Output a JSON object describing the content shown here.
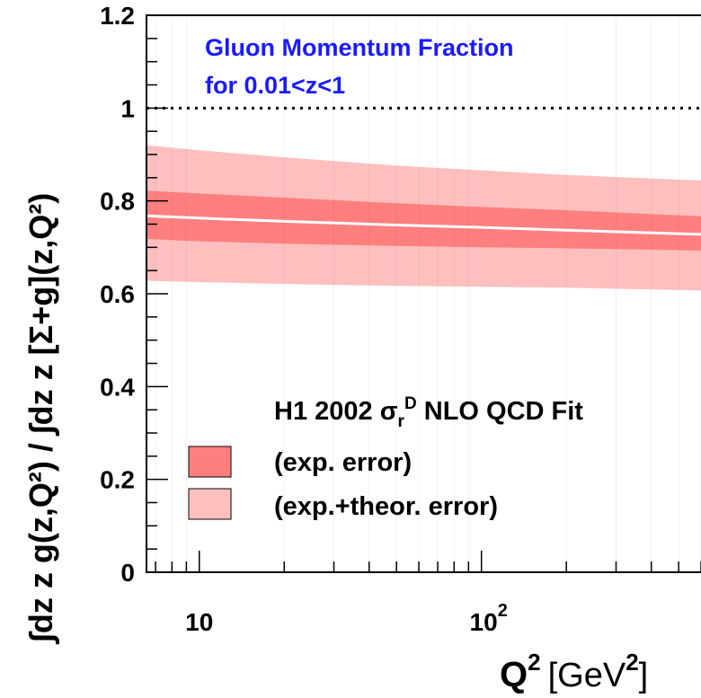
{
  "chart_data": {
    "type": "area",
    "x_scale": "log",
    "xlim": [
      6.5,
      600
    ],
    "ylim": [
      0,
      1.2
    ],
    "x_ticks": [
      10,
      100
    ],
    "x_tick_labels": [
      {
        "base": "10",
        "sup": ""
      },
      {
        "base": "10",
        "sup": "2"
      }
    ],
    "y_ticks": [
      0,
      0.2,
      0.4,
      0.6,
      0.8,
      1,
      1.2
    ],
    "y_tick_labels": [
      "0",
      "0.2",
      "0.4",
      "0.6",
      "0.8",
      "1",
      "1.2"
    ],
    "xlabel": {
      "q": "Q",
      "sup1": "2",
      "unit": "[GeV",
      "sup2": "2",
      "close": "]"
    },
    "ylabel": "∫dz z g(z,Q²) / ∫dz z [Σ+g](z,Q²)",
    "reference_line": {
      "y": 1.0,
      "style": "dotted"
    },
    "annotation": [
      "Gluon Momentum Fraction",
      "for 0.01<z<1"
    ],
    "legend_title": {
      "pre": "H1 2002 ",
      "sigma": "σ",
      "sub": "r",
      "sup": "D",
      "post": " NLO QCD Fit"
    },
    "x": [
      6.5,
      10,
      20,
      50,
      100,
      200,
      600
    ],
    "central": [
      0.768,
      0.763,
      0.756,
      0.748,
      0.743,
      0.737,
      0.728
    ],
    "series": [
      {
        "name": "(exp. error)",
        "color": "#ff7f7f",
        "lower": [
          0.718,
          0.713,
          0.708,
          0.703,
          0.7,
          0.698,
          0.693
        ],
        "upper": [
          0.822,
          0.816,
          0.807,
          0.795,
          0.787,
          0.78,
          0.767
        ]
      },
      {
        "name": "(exp.+theor. error)",
        "color": "#ffbfbf",
        "lower": [
          0.628,
          0.625,
          0.621,
          0.617,
          0.615,
          0.613,
          0.607
        ],
        "upper": [
          0.92,
          0.909,
          0.894,
          0.876,
          0.866,
          0.856,
          0.844
        ]
      }
    ],
    "grid": false,
    "legend_position": "bottom-right"
  }
}
